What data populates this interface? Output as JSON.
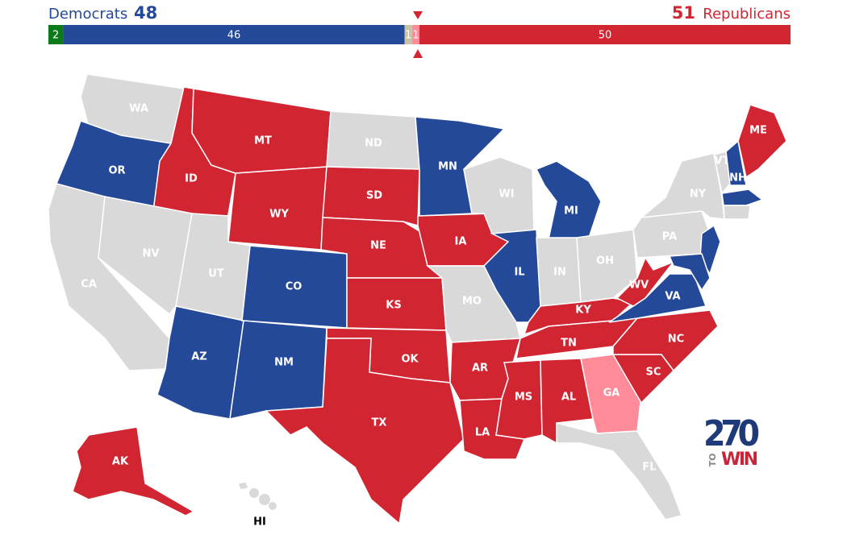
{
  "bar": {
    "dem_label": "Democrats",
    "dem_total": 48,
    "rep_total": 51,
    "rep_label": "Republicans",
    "segments": [
      {
        "value": 2,
        "color": "#0b7a18"
      },
      {
        "value": 46,
        "color": "#244999"
      },
      {
        "value": 1,
        "color": "#c9c3a6"
      },
      {
        "value": 1,
        "color": "#ff8b98"
      },
      {
        "value": 50,
        "color": "#d22532"
      }
    ]
  },
  "status_colors": {
    "dem": "#244999",
    "rep": "#d22532",
    "lean_rep": "#ff8b98",
    "none": "#d9d9d9"
  },
  "states": [
    {
      "label": "WA",
      "status": "none"
    },
    {
      "label": "OR",
      "status": "dem"
    },
    {
      "label": "CA",
      "status": "none"
    },
    {
      "label": "ID",
      "status": "rep"
    },
    {
      "label": "NV",
      "status": "none"
    },
    {
      "label": "MT",
      "status": "rep"
    },
    {
      "label": "WY",
      "status": "rep"
    },
    {
      "label": "UT",
      "status": "none"
    },
    {
      "label": "AZ",
      "status": "dem"
    },
    {
      "label": "CO",
      "status": "dem"
    },
    {
      "label": "NM",
      "status": "dem"
    },
    {
      "label": "ND",
      "status": "none"
    },
    {
      "label": "SD",
      "status": "rep"
    },
    {
      "label": "NE",
      "status": "rep"
    },
    {
      "label": "KS",
      "status": "rep"
    },
    {
      "label": "OK",
      "status": "rep"
    },
    {
      "label": "TX",
      "status": "rep"
    },
    {
      "label": "MN",
      "status": "dem"
    },
    {
      "label": "IA",
      "status": "rep"
    },
    {
      "label": "MO",
      "status": "none"
    },
    {
      "label": "AR",
      "status": "rep"
    },
    {
      "label": "LA",
      "status": "rep"
    },
    {
      "label": "WI",
      "status": "none"
    },
    {
      "label": "IL",
      "status": "dem"
    },
    {
      "label": "MI",
      "status": "dem"
    },
    {
      "label": "IN",
      "status": "none"
    },
    {
      "label": "OH",
      "status": "none"
    },
    {
      "label": "KY",
      "status": "rep"
    },
    {
      "label": "TN",
      "status": "rep"
    },
    {
      "label": "MS",
      "status": "rep"
    },
    {
      "label": "AL",
      "status": "rep"
    },
    {
      "label": "GA",
      "status": "lean_rep"
    },
    {
      "label": "FL",
      "status": "none"
    },
    {
      "label": "SC",
      "status": "rep"
    },
    {
      "label": "NC",
      "status": "rep"
    },
    {
      "label": "VA",
      "status": "dem"
    },
    {
      "label": "WV",
      "status": "rep"
    },
    {
      "label": "PA",
      "status": "none"
    },
    {
      "label": "NY",
      "status": "none"
    },
    {
      "label": null,
      "status": "dem"
    },
    {
      "label": null,
      "status": "dem"
    },
    {
      "label": "VT",
      "status": "none"
    },
    {
      "label": "NH",
      "status": "dem"
    },
    {
      "label": null,
      "status": "dem"
    },
    {
      "label": null,
      "status": "none"
    },
    {
      "label": "ME",
      "status": "rep"
    },
    {
      "label": "AK",
      "status": "rep"
    },
    {
      "label": "HI",
      "status": "none"
    }
  ],
  "logo": {
    "number": "270",
    "to": "TO",
    "win": "WIN"
  }
}
